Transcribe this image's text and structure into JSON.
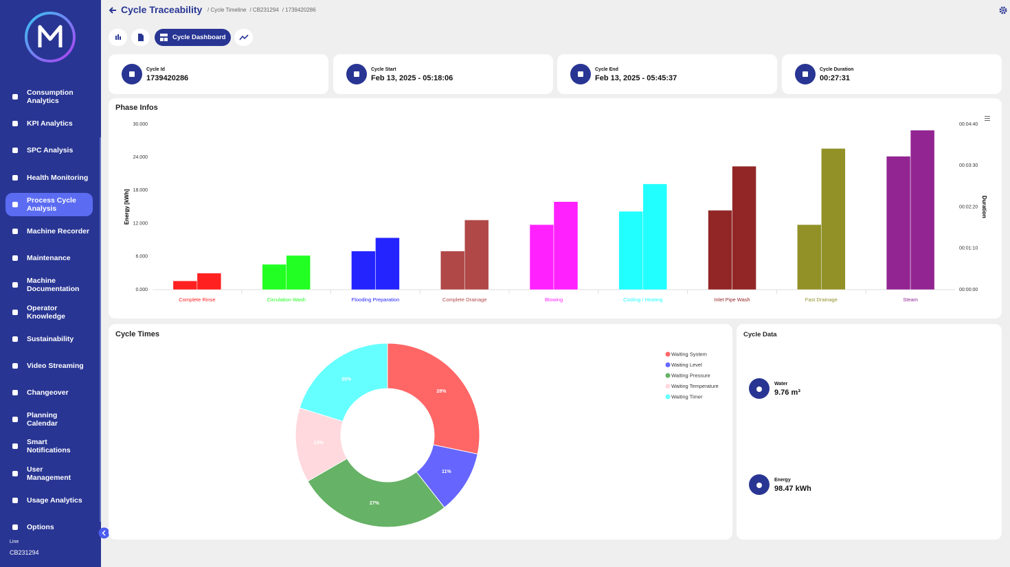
{
  "sidebar": {
    "items": [
      "Consumption Analytics",
      "KPI Analytics",
      "SPC Analysis",
      "Health Monitoring",
      "Process Cycle Analysis",
      "Machine Recorder",
      "Maintenance",
      "Machine Documentation",
      "Operator Knowledge",
      "Sustainability",
      "Video Streaming",
      "Changeover",
      "Planning Calendar",
      "Smart Notifications",
      "User Management",
      "Usage Analytics",
      "Options"
    ],
    "line_label": "Line",
    "line_value": "CB231294"
  },
  "header": {
    "title": "Cycle Traceability",
    "breadcrumbs": [
      "/ Cycle Timeline",
      "/ CB231294",
      "/ 1739420286"
    ]
  },
  "tabs": {
    "active": "Cycle Dashboard"
  },
  "cards": [
    {
      "label": "Cycle Id",
      "value": "1739420286"
    },
    {
      "label": "Cycle Start",
      "value": "Feb 13, 2025 - 05:18:06"
    },
    {
      "label": "Cycle End",
      "value": "Feb 13, 2025 - 05:45:37"
    },
    {
      "label": "Cycle Duration",
      "value": "00:27:31"
    }
  ],
  "chart_data": [
    {
      "type": "bar",
      "title": "Phase Infos",
      "ylabel": "Energy [kWh]",
      "y2label": "Duration",
      "categories": [
        "Complete Rinse",
        "Circulation Wash",
        "Flooding Preparation",
        "Complete Drainage",
        "Blowing",
        "Cooling / Heating",
        "Inlet Pipe Wash",
        "Fast Drainage",
        "Steam"
      ],
      "colors": [
        "#ff2020",
        "#22ff22",
        "#2424ff",
        "#b04848",
        "#ff22ff",
        "#22ffff",
        "#922626",
        "#919128",
        "#922592"
      ],
      "series": [
        {
          "values": [
            1.6,
            4.6,
            7.0,
            7.0,
            11.8,
            14.2,
            14.4,
            11.8,
            24.2
          ]
        },
        {
          "values": [
            28,
            58,
            88,
            118,
            149,
            179,
            209,
            239,
            270
          ],
          "axis": "y2"
        }
      ],
      "ylim": [
        0,
        30
      ],
      "yticks": [
        {
          "value": 0,
          "label": "0.000"
        },
        {
          "value": 6,
          "label": "6.000"
        },
        {
          "value": 12,
          "label": "12.000"
        },
        {
          "value": 18,
          "label": "18.000"
        },
        {
          "value": 24,
          "label": "24.000"
        },
        {
          "value": 30,
          "label": "30.000"
        }
      ],
      "y2lim": [
        0,
        280
      ],
      "y2ticks": [
        {
          "value": 0,
          "label": "00:00:00"
        },
        {
          "value": 70,
          "label": "00:01:10"
        },
        {
          "value": 140,
          "label": "00:02:20"
        },
        {
          "value": 210,
          "label": "00:03:30"
        },
        {
          "value": 280,
          "label": "00:04:40"
        }
      ]
    },
    {
      "type": "pie",
      "title": "Cycle Times",
      "categories": [
        "Waiting System",
        "Waiting Level",
        "Waiting Pressure",
        "Waiting Temperature",
        "Waiting Timer"
      ],
      "values": [
        28,
        11,
        27,
        13,
        20
      ],
      "value_labels": [
        "28%",
        "11%",
        "27%",
        "13%",
        "20%"
      ],
      "colors": [
        "#ff6666",
        "#6666ff",
        "#66b266",
        "#ffd9de",
        "#66ffff"
      ]
    }
  ],
  "cycle_data": {
    "title": "Cycle Data",
    "items": [
      {
        "label": "Water",
        "value": "9.76 m³"
      },
      {
        "label": "Energy",
        "value": "98.47 kWh"
      }
    ]
  }
}
